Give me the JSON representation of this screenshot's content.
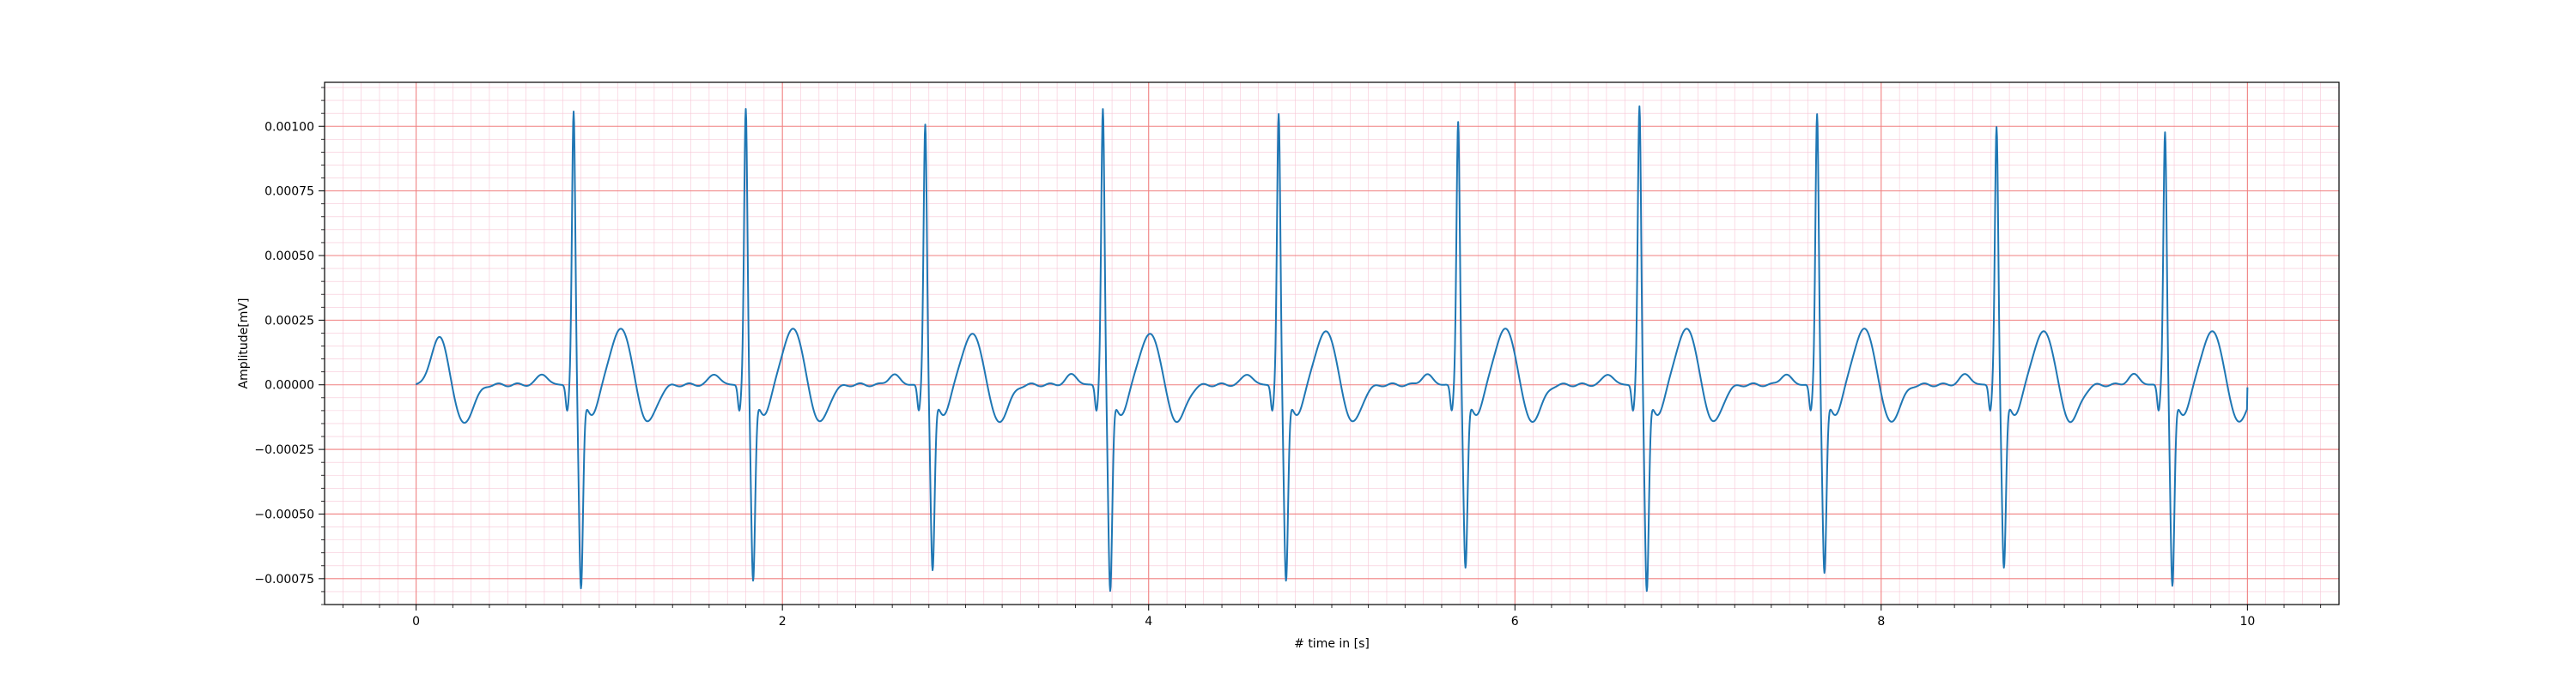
{
  "chart_data": {
    "type": "line",
    "title": "",
    "xlabel": "# time in [s]",
    "ylabel": "Amplitude[mV]",
    "xlim": [
      -0.5,
      10.5
    ],
    "ylim": [
      -0.00085,
      0.00117
    ],
    "xticks": [
      0,
      2,
      4,
      6,
      8,
      10
    ],
    "xtick_labels": [
      "0",
      "2",
      "4",
      "6",
      "8",
      "10"
    ],
    "yticks": [
      0.001,
      0.00075,
      0.0005,
      0.00025,
      0.0,
      -0.00025,
      -0.0005,
      -0.00075
    ],
    "ytick_labels": [
      "0.00100",
      "0.00075",
      "0.00050",
      "0.00025",
      "0.00000",
      "−0.00025",
      "−0.00050",
      "−0.00075"
    ],
    "grid": true,
    "grid_major_color": "#f08080",
    "grid_minor_color": "#f7c6d6",
    "series": [
      {
        "color": "#1f77b4",
        "beats": [
          {
            "r": 0.86,
            "r_amp": 0.00106,
            "s_amp": -0.00076,
            "t_amp": 0.00022
          },
          {
            "r": 1.8,
            "r_amp": 0.00107,
            "s_amp": -0.00073,
            "t_amp": 0.00022
          },
          {
            "r": 2.78,
            "r_amp": 0.00101,
            "s_amp": -0.00069,
            "t_amp": 0.0002
          },
          {
            "r": 3.75,
            "r_amp": 0.00107,
            "s_amp": -0.00077,
            "t_amp": 0.0002
          },
          {
            "r": 4.71,
            "r_amp": 0.00105,
            "s_amp": -0.00073,
            "t_amp": 0.00021
          },
          {
            "r": 5.69,
            "r_amp": 0.00102,
            "s_amp": -0.00068,
            "t_amp": 0.00022
          },
          {
            "r": 6.68,
            "r_amp": 0.00108,
            "s_amp": -0.00077,
            "t_amp": 0.00022
          },
          {
            "r": 7.65,
            "r_amp": 0.00105,
            "s_amp": -0.0007,
            "t_amp": 0.00022
          },
          {
            "r": 8.63,
            "r_amp": 0.001,
            "s_amp": -0.00068,
            "t_amp": 0.00021
          },
          {
            "r": 9.55,
            "r_amp": 0.00098,
            "s_amp": -0.00075,
            "t_amp": 0.00021
          }
        ],
        "start": {
          "x": 0.0,
          "y": 0.0,
          "t_peak_x": 0.13,
          "t_amp": 0.00019,
          "trough_x": 0.26,
          "trough_amp": -0.00015
        },
        "end": {
          "x": 10.0,
          "y": -1e-05
        }
      }
    ]
  }
}
